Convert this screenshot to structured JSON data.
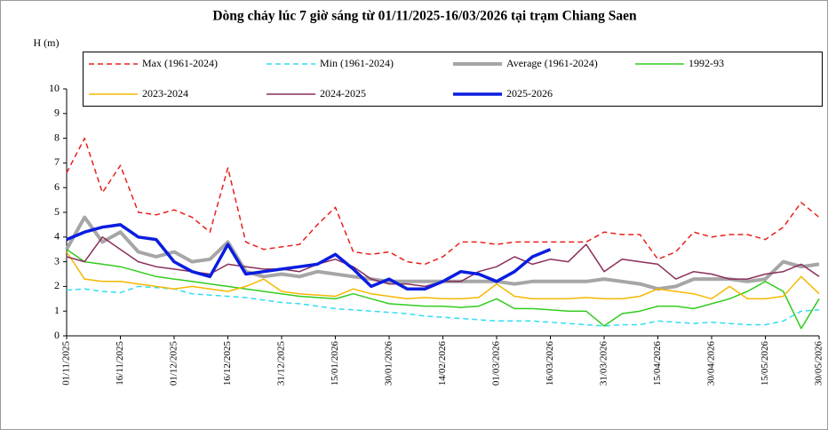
{
  "chart_data": {
    "type": "line",
    "title": "Dòng chảy lúc 7 giờ sáng từ 01/11/2025-16/03/2026 tại trạm Chiang Saen",
    "y_label": "H (m)",
    "x": [
      "01/11/2025",
      "06/11/2025",
      "11/11/2025",
      "16/11/2025",
      "21/11/2025",
      "26/11/2025",
      "01/12/2025",
      "06/12/2025",
      "11/12/2025",
      "16/12/2025",
      "21/12/2025",
      "26/12/2025",
      "31/12/2025",
      "05/01/2026",
      "10/01/2026",
      "15/01/2026",
      "20/01/2026",
      "25/01/2026",
      "30/01/2026",
      "04/02/2026",
      "09/02/2026",
      "14/02/2026",
      "19/02/2026",
      "24/02/2026",
      "01/03/2026",
      "06/03/2026",
      "11/03/2026",
      "16/03/2026",
      "21/03/2026",
      "26/03/2026",
      "31/03/2026",
      "05/04/2026",
      "10/04/2026",
      "15/04/2026",
      "20/04/2026",
      "25/04/2026",
      "30/04/2026",
      "05/05/2026",
      "10/05/2026",
      "15/05/2026",
      "20/05/2026",
      "25/05/2026",
      "30/05/2026"
    ],
    "xlim": [
      "01/11/2025",
      "30/05/2026"
    ],
    "xticks": [
      "01/11/2025",
      "16/11/2025",
      "01/12/2025",
      "16/12/2025",
      "31/12/2025",
      "15/01/2026",
      "30/01/2026",
      "14/02/2026",
      "01/03/2026",
      "16/03/2026",
      "31/03/2026",
      "15/04/2026",
      "30/04/2026",
      "15/05/2026",
      "30/05/2026"
    ],
    "ylim": [
      0,
      10
    ],
    "yticks": [
      0,
      1,
      2,
      3,
      4,
      5,
      6,
      7,
      8,
      9,
      10
    ],
    "series": [
      {
        "name": "Max (1961-2024)",
        "color": "#e8201c",
        "line_style": "dashed",
        "values": [
          6.6,
          8.0,
          5.8,
          6.9,
          5.0,
          4.9,
          5.1,
          4.8,
          4.2,
          6.8,
          3.8,
          3.5,
          3.6,
          3.7,
          4.5,
          5.2,
          3.4,
          3.3,
          3.4,
          3.0,
          2.9,
          3.2,
          3.8,
          3.8,
          3.7,
          3.8,
          3.8,
          3.8,
          3.8,
          3.8,
          4.2,
          4.1,
          4.1,
          3.1,
          3.4,
          4.2,
          4.0,
          4.1,
          4.1,
          3.9,
          4.4,
          5.4,
          4.8
        ]
      },
      {
        "name": "Min (1961-2024)",
        "color": "#33ddf2",
        "line_style": "dashed",
        "values": [
          1.85,
          1.9,
          1.8,
          1.75,
          2.0,
          1.95,
          1.9,
          1.7,
          1.65,
          1.6,
          1.55,
          1.45,
          1.35,
          1.3,
          1.2,
          1.1,
          1.05,
          1.0,
          0.95,
          0.9,
          0.8,
          0.75,
          0.7,
          0.65,
          0.6,
          0.6,
          0.6,
          0.55,
          0.5,
          0.45,
          0.4,
          0.45,
          0.45,
          0.6,
          0.55,
          0.5,
          0.55,
          0.5,
          0.45,
          0.45,
          0.6,
          1.0,
          1.05
        ]
      },
      {
        "name": "Average (1961-2024)",
        "color": "#a6a6a6",
        "line_style": "solid",
        "values": [
          3.5,
          4.8,
          3.8,
          4.2,
          3.4,
          3.2,
          3.4,
          3.0,
          3.1,
          3.8,
          2.6,
          2.4,
          2.5,
          2.4,
          2.6,
          2.5,
          2.4,
          2.3,
          2.2,
          2.2,
          2.2,
          2.2,
          2.2,
          2.2,
          2.2,
          2.1,
          2.2,
          2.2,
          2.2,
          2.2,
          2.3,
          2.2,
          2.1,
          1.9,
          2.0,
          2.3,
          2.3,
          2.3,
          2.2,
          2.3,
          3.0,
          2.8,
          2.9
        ]
      },
      {
        "name": "1992-93",
        "color": "#33cc1f",
        "line_style": "solid",
        "values": [
          3.5,
          3.0,
          2.9,
          2.8,
          2.6,
          2.4,
          2.3,
          2.2,
          2.1,
          2.0,
          1.9,
          1.8,
          1.7,
          1.6,
          1.55,
          1.5,
          1.7,
          1.5,
          1.3,
          1.25,
          1.2,
          1.2,
          1.15,
          1.2,
          1.5,
          1.1,
          1.1,
          1.05,
          1.0,
          1.0,
          0.4,
          0.9,
          1.0,
          1.2,
          1.2,
          1.1,
          1.3,
          1.5,
          1.8,
          2.2,
          1.8,
          0.3,
          1.5
        ]
      },
      {
        "name": "2023-2024",
        "color": "#f5b800",
        "line_style": "solid",
        "values": [
          3.4,
          2.3,
          2.2,
          2.2,
          2.1,
          2.0,
          1.9,
          2.0,
          1.9,
          1.8,
          2.0,
          2.3,
          1.8,
          1.7,
          1.65,
          1.6,
          1.9,
          1.7,
          1.6,
          1.5,
          1.55,
          1.5,
          1.5,
          1.55,
          2.1,
          1.6,
          1.5,
          1.5,
          1.5,
          1.55,
          1.5,
          1.5,
          1.6,
          1.9,
          1.8,
          1.7,
          1.5,
          2.0,
          1.5,
          1.5,
          1.6,
          2.4,
          1.7
        ]
      },
      {
        "name": "2024-2025",
        "color": "#8b2f5c",
        "line_style": "solid",
        "values": [
          3.2,
          3.0,
          4.0,
          3.5,
          3.0,
          2.8,
          2.7,
          2.6,
          2.5,
          2.9,
          2.8,
          2.7,
          2.7,
          2.6,
          2.9,
          3.1,
          2.8,
          2.3,
          2.1,
          2.1,
          2.0,
          2.2,
          2.2,
          2.6,
          2.8,
          3.2,
          2.9,
          3.1,
          3.0,
          3.7,
          2.6,
          3.1,
          3.0,
          2.9,
          2.3,
          2.6,
          2.5,
          2.3,
          2.3,
          2.5,
          2.6,
          2.9,
          2.4
        ]
      },
      {
        "name": "2025-2026",
        "color": "#0a1de0",
        "line_style": "solid",
        "values": [
          3.9,
          4.2,
          4.4,
          4.5,
          4.0,
          3.9,
          3.0,
          2.6,
          2.4,
          3.7,
          2.5,
          2.6,
          2.7,
          2.8,
          2.9,
          3.3,
          2.7,
          2.0,
          2.3,
          1.9,
          1.9,
          2.2,
          2.6,
          2.5,
          2.2,
          2.6,
          3.2,
          3.5,
          null,
          null,
          null,
          null,
          null,
          null,
          null,
          null,
          null,
          null,
          null,
          null,
          null,
          null,
          null
        ]
      }
    ]
  }
}
